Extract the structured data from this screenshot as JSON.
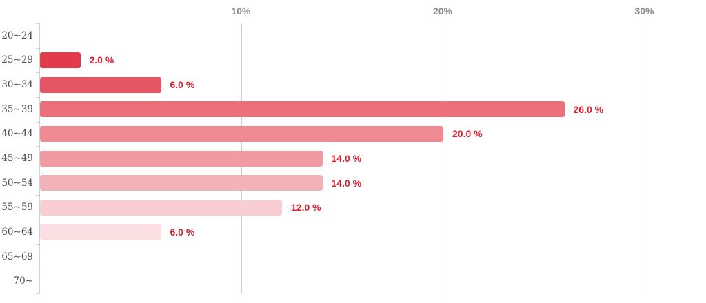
{
  "chart_data": {
    "type": "bar",
    "orientation": "horizontal",
    "title": "",
    "categories": [
      "20∼24",
      "25∼29",
      "30∼34",
      "35∼39",
      "40∼44",
      "45∼49",
      "50∼54",
      "55∼59",
      "60∼64",
      "65∼69",
      "70∼"
    ],
    "values": [
      0,
      2.0,
      6.0,
      26.0,
      20.0,
      14.0,
      14.0,
      12.0,
      6.0,
      0,
      0
    ],
    "value_labels": [
      "",
      "2.0 %",
      "6.0 %",
      "26.0 %",
      "20.0 %",
      "14.0 %",
      "14.0 %",
      "12.0 %",
      "6.0 %",
      "",
      ""
    ],
    "bar_colors": [
      null,
      "#e23c4c",
      "#e45663",
      "#ec6f7a",
      "#ee8a92",
      "#f09ba3",
      "#f3b1b8",
      "#f8ced2",
      "#fbdfe2",
      null,
      null
    ],
    "x_axis": {
      "tick_labels": [
        "10%",
        "20%",
        "30%"
      ],
      "tick_values": [
        10,
        20,
        30
      ],
      "range": [
        0,
        33
      ]
    },
    "y_axis_label": "",
    "x_axis_label": "",
    "grid": "vertical-lines",
    "legend": "none"
  },
  "styles": {
    "background": "#ffffff",
    "value_label_color": "#d7202d",
    "grid_color": "#cccccc",
    "axis_color": "#c9d4e2",
    "x_tick_label_color": "#8c8c8c",
    "category_label_color": "#4d4d4d"
  }
}
